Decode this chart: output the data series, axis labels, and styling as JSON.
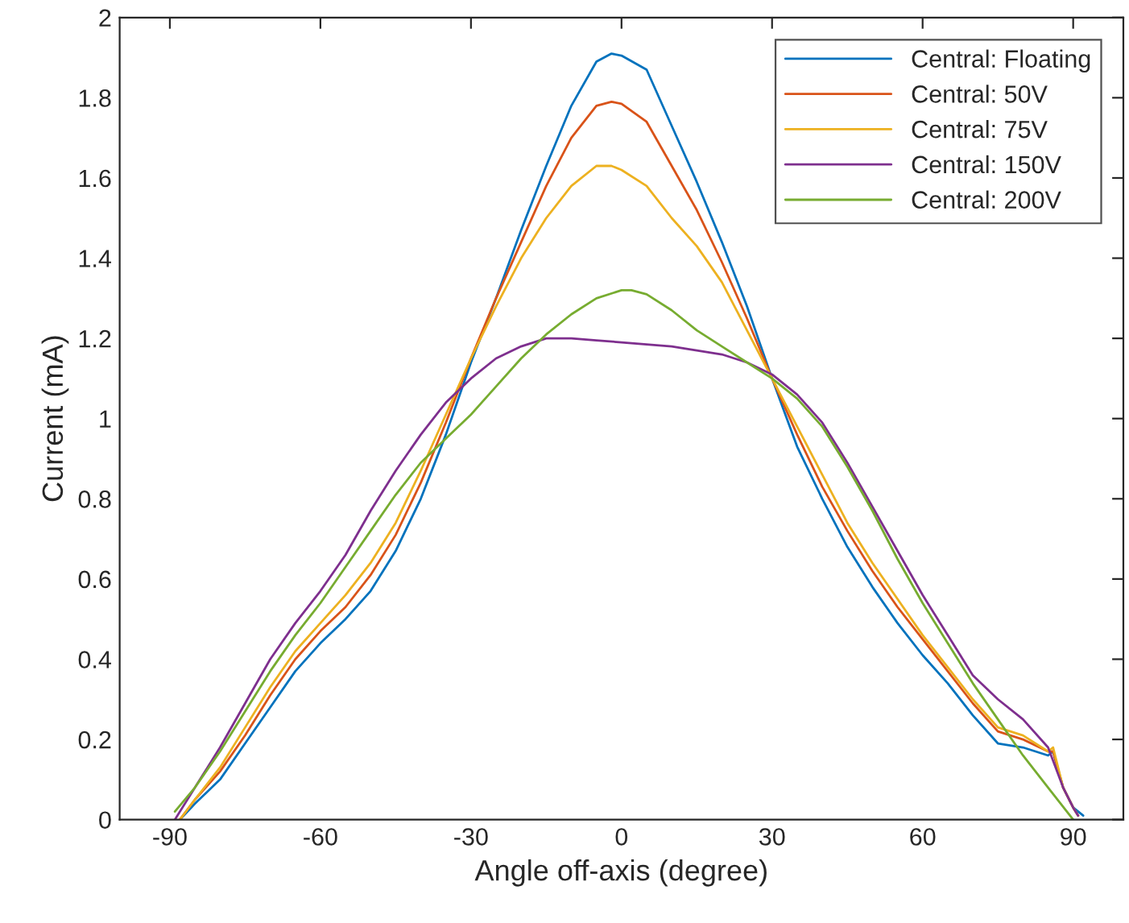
{
  "chart_data": {
    "type": "line",
    "xlabel": "Angle off-axis (degree)",
    "ylabel": "Current (mA)",
    "xlim": [
      -100,
      100
    ],
    "xticks": [
      -90,
      -60,
      -30,
      0,
      30,
      60,
      90
    ],
    "ylim": [
      0,
      2
    ],
    "yticks": [
      0,
      0.2,
      0.4,
      0.6,
      0.8,
      1,
      1.2,
      1.4,
      1.6,
      1.8,
      2
    ],
    "grid": false,
    "legend": "top right",
    "marker": "none",
    "line_style": "solid",
    "series": [
      {
        "name": "Central: Floating",
        "color": "#0072bd",
        "x": [
          -88,
          -85,
          -80,
          -75,
          -70,
          -65,
          -60,
          -55,
          -50,
          -45,
          -40,
          -35,
          -30,
          -25,
          -20,
          -15,
          -10,
          -5,
          -2,
          0,
          5,
          10,
          15,
          20,
          25,
          30,
          35,
          40,
          45,
          50,
          55,
          60,
          65,
          70,
          75,
          80,
          85,
          86,
          88,
          90,
          92
        ],
        "values": [
          0,
          0.04,
          0.1,
          0.19,
          0.28,
          0.37,
          0.44,
          0.5,
          0.57,
          0.67,
          0.8,
          0.96,
          1.14,
          1.3,
          1.47,
          1.63,
          1.78,
          1.89,
          1.91,
          1.905,
          1.87,
          1.73,
          1.59,
          1.44,
          1.28,
          1.1,
          0.93,
          0.8,
          0.68,
          0.58,
          0.49,
          0.41,
          0.34,
          0.26,
          0.19,
          0.18,
          0.16,
          0.17,
          0.08,
          0.03,
          0.01
        ]
      },
      {
        "name": "Central: 50V",
        "color": "#d95319",
        "x": [
          -88,
          -85,
          -80,
          -75,
          -70,
          -65,
          -60,
          -55,
          -50,
          -45,
          -40,
          -35,
          -30,
          -25,
          -20,
          -15,
          -10,
          -5,
          -2,
          0,
          5,
          10,
          15,
          20,
          25,
          30,
          35,
          40,
          45,
          50,
          55,
          60,
          65,
          70,
          75,
          80,
          85,
          86,
          88,
          90,
          91
        ],
        "values": [
          0,
          0.05,
          0.12,
          0.21,
          0.31,
          0.4,
          0.47,
          0.53,
          0.61,
          0.71,
          0.84,
          0.99,
          1.15,
          1.3,
          1.44,
          1.58,
          1.7,
          1.78,
          1.79,
          1.785,
          1.74,
          1.63,
          1.52,
          1.39,
          1.25,
          1.1,
          0.96,
          0.83,
          0.72,
          0.62,
          0.53,
          0.45,
          0.37,
          0.29,
          0.22,
          0.2,
          0.17,
          0.17,
          0.08,
          0.03,
          0.01
        ]
      },
      {
        "name": "Central: 75V",
        "color": "#edb120",
        "x": [
          -88,
          -85,
          -80,
          -75,
          -70,
          -65,
          -60,
          -55,
          -50,
          -45,
          -40,
          -35,
          -30,
          -25,
          -20,
          -15,
          -10,
          -5,
          -2,
          0,
          5,
          10,
          15,
          20,
          25,
          30,
          35,
          40,
          45,
          50,
          55,
          60,
          65,
          70,
          75,
          80,
          85,
          86,
          88,
          90,
          91
        ],
        "values": [
          0,
          0.05,
          0.13,
          0.23,
          0.33,
          0.42,
          0.49,
          0.56,
          0.64,
          0.74,
          0.87,
          1.01,
          1.15,
          1.28,
          1.4,
          1.5,
          1.58,
          1.63,
          1.63,
          1.62,
          1.58,
          1.5,
          1.43,
          1.34,
          1.22,
          1.1,
          0.98,
          0.86,
          0.74,
          0.64,
          0.55,
          0.46,
          0.38,
          0.3,
          0.23,
          0.21,
          0.17,
          0.18,
          0.08,
          0.03,
          0.01
        ]
      },
      {
        "name": "Central: 150V",
        "color": "#7e2f8e",
        "x": [
          -89,
          -85,
          -80,
          -75,
          -70,
          -65,
          -60,
          -55,
          -50,
          -45,
          -40,
          -35,
          -30,
          -25,
          -20,
          -15,
          -10,
          -5,
          0,
          5,
          10,
          15,
          20,
          25,
          30,
          35,
          40,
          45,
          50,
          55,
          60,
          65,
          70,
          75,
          80,
          85,
          88,
          90,
          91
        ],
        "values": [
          0,
          0.08,
          0.18,
          0.29,
          0.4,
          0.49,
          0.57,
          0.66,
          0.77,
          0.87,
          0.96,
          1.04,
          1.1,
          1.15,
          1.18,
          1.2,
          1.2,
          1.195,
          1.19,
          1.185,
          1.18,
          1.17,
          1.16,
          1.14,
          1.11,
          1.06,
          0.99,
          0.89,
          0.78,
          0.67,
          0.56,
          0.46,
          0.36,
          0.3,
          0.25,
          0.18,
          0.08,
          0.03,
          0.01
        ]
      },
      {
        "name": "Central: 200V",
        "color": "#77ac30",
        "x": [
          -89,
          -85,
          -80,
          -75,
          -70,
          -65,
          -60,
          -55,
          -50,
          -45,
          -40,
          -35,
          -30,
          -25,
          -20,
          -15,
          -10,
          -5,
          0,
          2,
          5,
          10,
          15,
          20,
          25,
          30,
          35,
          40,
          45,
          50,
          55,
          60,
          65,
          70,
          75,
          80,
          85,
          90
        ],
        "values": [
          0.02,
          0.08,
          0.17,
          0.27,
          0.37,
          0.46,
          0.54,
          0.63,
          0.72,
          0.81,
          0.89,
          0.95,
          1.01,
          1.08,
          1.15,
          1.21,
          1.26,
          1.3,
          1.32,
          1.32,
          1.31,
          1.27,
          1.22,
          1.18,
          1.14,
          1.1,
          1.05,
          0.98,
          0.88,
          0.77,
          0.65,
          0.54,
          0.44,
          0.34,
          0.25,
          0.16,
          0.08,
          0
        ]
      }
    ]
  }
}
